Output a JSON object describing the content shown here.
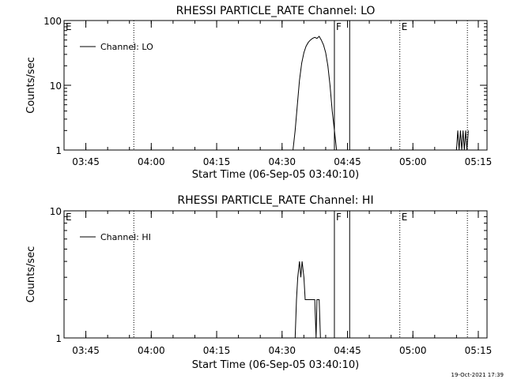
{
  "footer_timestamp": "19-Oct-2021 17:39",
  "chart_data": [
    {
      "type": "line",
      "title": "RHESSI PARTICLE_RATE Channel: LO",
      "xlabel": "Start Time (06-Sep-05 03:40:10)",
      "ylabel": "Counts/sec",
      "yscale": "log",
      "ylim": [
        1,
        100
      ],
      "xlim_minutes": [
        0,
        97
      ],
      "x_tick_minutes": [
        5,
        20,
        35,
        50,
        65,
        80,
        95
      ],
      "x_tick_labels": [
        "03:45",
        "04:00",
        "04:15",
        "04:30",
        "04:45",
        "05:00",
        "05:15"
      ],
      "y_tick_values": [
        1,
        10,
        100
      ],
      "y_tick_labels": [
        "1",
        "10",
        "100"
      ],
      "legend": {
        "label": "Channel: LO",
        "position": "top-left"
      },
      "markers": [
        {
          "label": "E",
          "minute": 0,
          "style": "none"
        },
        {
          "label": "",
          "minute": 16,
          "style": "dotted"
        },
        {
          "label": "F",
          "minute": 62,
          "style": "solid"
        },
        {
          "label": "",
          "minute": 65.5,
          "style": "solid"
        },
        {
          "label": "E",
          "minute": 77,
          "style": "dotted"
        },
        {
          "label": "",
          "minute": 92.5,
          "style": "dotted"
        }
      ],
      "series": [
        {
          "name": "Channel: LO",
          "segments": [
            [
              [
                52.5,
                1
              ],
              [
                53,
                2
              ],
              [
                53.5,
                5
              ],
              [
                54,
                12
              ],
              [
                54.5,
                22
              ],
              [
                55,
                32
              ],
              [
                55.5,
                40
              ],
              [
                56,
                46
              ],
              [
                56.5,
                50
              ],
              [
                57,
                53
              ],
              [
                57.5,
                55
              ],
              [
                58,
                53
              ],
              [
                58.5,
                57
              ],
              [
                59,
                50
              ],
              [
                59.5,
                42
              ],
              [
                60,
                32
              ],
              [
                60.5,
                20
              ],
              [
                61,
                10
              ],
              [
                61.5,
                4
              ],
              [
                62,
                2
              ],
              [
                62.5,
                1
              ]
            ],
            [
              [
                90,
                1
              ],
              [
                90.3,
                2
              ],
              [
                90.6,
                1
              ],
              [
                90.9,
                2
              ],
              [
                91.2,
                1
              ],
              [
                91.5,
                2
              ],
              [
                91.8,
                1
              ],
              [
                92.1,
                2
              ],
              [
                92.4,
                1
              ],
              [
                92.7,
                2
              ]
            ]
          ]
        }
      ]
    },
    {
      "type": "line",
      "title": "RHESSI PARTICLE_RATE Channel: HI",
      "xlabel": "Start Time (06-Sep-05 03:40:10)",
      "ylabel": "Counts/sec",
      "yscale": "log",
      "ylim": [
        1,
        10
      ],
      "xlim_minutes": [
        0,
        97
      ],
      "x_tick_minutes": [
        5,
        20,
        35,
        50,
        65,
        80,
        95
      ],
      "x_tick_labels": [
        "03:45",
        "04:00",
        "04:15",
        "04:30",
        "04:45",
        "05:00",
        "05:15"
      ],
      "y_tick_values": [
        1,
        10
      ],
      "y_tick_labels": [
        "1",
        "10"
      ],
      "legend": {
        "label": "Channel: HI",
        "position": "top-left"
      },
      "markers": [
        {
          "label": "E",
          "minute": 0,
          "style": "none"
        },
        {
          "label": "",
          "minute": 16,
          "style": "dotted"
        },
        {
          "label": "F",
          "minute": 62,
          "style": "solid"
        },
        {
          "label": "",
          "minute": 65.5,
          "style": "solid"
        },
        {
          "label": "E",
          "minute": 77,
          "style": "dotted"
        },
        {
          "label": "",
          "minute": 92.5,
          "style": "dotted"
        }
      ],
      "series": [
        {
          "name": "Channel: HI",
          "segments": [
            [
              [
                53,
                1
              ],
              [
                53.3,
                2
              ],
              [
                53.6,
                3
              ],
              [
                54,
                4
              ],
              [
                54.3,
                3
              ],
              [
                54.6,
                4
              ],
              [
                55,
                3
              ],
              [
                55.3,
                2
              ],
              [
                56,
                2
              ],
              [
                56.3,
                2
              ],
              [
                57.5,
                2
              ],
              [
                57.8,
                1
              ],
              [
                58,
                2
              ],
              [
                58.5,
                2
              ],
              [
                58.8,
                1
              ]
            ]
          ]
        }
      ]
    }
  ]
}
